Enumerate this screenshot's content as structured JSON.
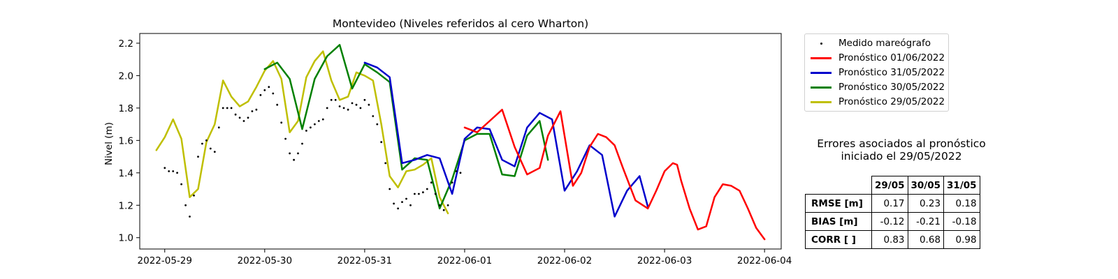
{
  "chart_data": {
    "type": "line",
    "title": "Montevideo (Niveles referidos al cero Wharton)",
    "xlabel": "",
    "ylabel": "Nivel (m)",
    "xlim": [
      "2022-05-28 18:00",
      "2022-06-04 04:00"
    ],
    "ylim": [
      0.93,
      2.26
    ],
    "yticks": [
      1.0,
      1.2,
      1.4,
      1.6,
      1.8,
      2.0,
      2.2
    ],
    "xticks": [
      "2022-05-29",
      "2022-05-30",
      "2022-05-31",
      "2022-06-01",
      "2022-06-02",
      "2022-06-03",
      "2022-06-04"
    ],
    "grid": false,
    "legend_position": "outside-right",
    "series": [
      {
        "name": "Medido mareógrafo",
        "style": "scatter",
        "color": "#000000",
        "x": [
          "2022-05-29 00:00",
          "2022-05-29 01:00",
          "2022-05-29 02:00",
          "2022-05-29 03:00",
          "2022-05-29 04:00",
          "2022-05-29 05:00",
          "2022-05-29 06:00",
          "2022-05-29 07:00",
          "2022-05-29 08:00",
          "2022-05-29 09:00",
          "2022-05-29 10:00",
          "2022-05-29 11:00",
          "2022-05-29 12:00",
          "2022-05-29 13:00",
          "2022-05-29 14:00",
          "2022-05-29 15:00",
          "2022-05-29 16:00",
          "2022-05-29 17:00",
          "2022-05-29 18:00",
          "2022-05-29 19:00",
          "2022-05-29 20:00",
          "2022-05-29 21:00",
          "2022-05-29 22:00",
          "2022-05-29 23:00",
          "2022-05-30 00:00",
          "2022-05-30 01:00",
          "2022-05-30 02:00",
          "2022-05-30 03:00",
          "2022-05-30 04:00",
          "2022-05-30 05:00",
          "2022-05-30 06:00",
          "2022-05-30 07:00",
          "2022-05-30 08:00",
          "2022-05-30 09:00",
          "2022-05-30 10:00",
          "2022-05-30 11:00",
          "2022-05-30 12:00",
          "2022-05-30 13:00",
          "2022-05-30 14:00",
          "2022-05-30 15:00",
          "2022-05-30 16:00",
          "2022-05-30 17:00",
          "2022-05-30 18:00",
          "2022-05-30 19:00",
          "2022-05-30 20:00",
          "2022-05-30 21:00",
          "2022-05-30 22:00",
          "2022-05-30 23:00",
          "2022-05-31 00:00",
          "2022-05-31 01:00",
          "2022-05-31 02:00",
          "2022-05-31 03:00",
          "2022-05-31 04:00",
          "2022-05-31 05:00",
          "2022-05-31 06:00",
          "2022-05-31 07:00",
          "2022-05-31 08:00",
          "2022-05-31 09:00",
          "2022-05-31 10:00",
          "2022-05-31 11:00",
          "2022-05-31 12:00",
          "2022-05-31 13:00",
          "2022-05-31 14:00",
          "2022-05-31 15:00",
          "2022-05-31 16:00",
          "2022-05-31 17:00",
          "2022-05-31 18:00",
          "2022-05-31 19:00",
          "2022-05-31 20:00",
          "2022-05-31 21:00",
          "2022-05-31 22:00",
          "2022-05-31 23:00"
        ],
        "values": [
          1.43,
          1.41,
          1.41,
          1.4,
          1.33,
          1.2,
          1.13,
          1.26,
          1.5,
          1.58,
          1.6,
          1.55,
          1.53,
          1.68,
          1.8,
          1.8,
          1.8,
          1.76,
          1.74,
          1.72,
          1.74,
          1.78,
          1.79,
          1.88,
          1.91,
          1.93,
          1.89,
          1.82,
          1.71,
          1.61,
          1.52,
          1.48,
          1.52,
          1.58,
          1.66,
          1.68,
          1.7,
          1.72,
          1.73,
          1.8,
          1.85,
          1.85,
          1.81,
          1.8,
          1.79,
          1.83,
          1.82,
          1.8,
          1.85,
          1.82,
          1.75,
          1.7,
          1.59,
          1.46,
          1.3,
          1.21,
          1.18,
          1.22,
          1.24,
          1.2,
          1.27,
          1.27,
          1.28,
          1.3,
          1.34,
          1.27,
          1.2,
          1.17,
          1.2,
          1.34,
          1.41,
          1.4
        ]
      },
      {
        "name": "Pronóstico 01/06/2022",
        "style": "line",
        "color": "#ff0000",
        "x": [
          "2022-06-01 00:00",
          "2022-06-01 03:00",
          "2022-06-01 06:00",
          "2022-06-01 09:00",
          "2022-06-01 12:00",
          "2022-06-01 15:00",
          "2022-06-01 18:00",
          "2022-06-01 20:00",
          "2022-06-01 23:00",
          "2022-06-02 02:00",
          "2022-06-02 04:00",
          "2022-06-02 06:00",
          "2022-06-02 08:00",
          "2022-06-02 10:00",
          "2022-06-02 12:00",
          "2022-06-02 14:00",
          "2022-06-02 17:00",
          "2022-06-02 20:00",
          "2022-06-02 22:00",
          "2022-06-03 00:00",
          "2022-06-03 02:00",
          "2022-06-03 03:00",
          "2022-06-03 04:00",
          "2022-06-03 06:00",
          "2022-06-03 08:00",
          "2022-06-03 10:00",
          "2022-06-03 12:00",
          "2022-06-03 14:00",
          "2022-06-03 16:00",
          "2022-06-03 18:00",
          "2022-06-03 20:00",
          "2022-06-03 22:00",
          "2022-06-04 00:00"
        ],
        "values": [
          1.68,
          1.65,
          1.72,
          1.79,
          1.56,
          1.39,
          1.43,
          1.63,
          1.78,
          1.32,
          1.4,
          1.56,
          1.64,
          1.62,
          1.57,
          1.43,
          1.23,
          1.18,
          1.29,
          1.41,
          1.46,
          1.45,
          1.35,
          1.18,
          1.05,
          1.07,
          1.25,
          1.33,
          1.32,
          1.29,
          1.18,
          1.06,
          0.99
        ]
      },
      {
        "name": "Pronóstico 31/05/2022",
        "style": "line",
        "color": "#0000cc",
        "x": [
          "2022-05-31 00:00",
          "2022-05-31 03:00",
          "2022-05-31 06:00",
          "2022-05-31 09:00",
          "2022-05-31 12:00",
          "2022-05-31 15:00",
          "2022-05-31 18:00",
          "2022-05-31 21:00",
          "2022-06-01 00:00",
          "2022-06-01 03:00",
          "2022-06-01 06:00",
          "2022-06-01 09:00",
          "2022-06-01 12:00",
          "2022-06-01 15:00",
          "2022-06-01 18:00",
          "2022-06-01 21:00",
          "2022-06-02 00:00",
          "2022-06-02 03:00",
          "2022-06-02 06:00",
          "2022-06-02 09:00",
          "2022-06-02 12:00",
          "2022-06-02 15:00",
          "2022-06-02 18:00",
          "2022-06-02 20:00"
        ],
        "values": [
          2.08,
          2.05,
          1.99,
          1.46,
          1.48,
          1.51,
          1.49,
          1.27,
          1.61,
          1.68,
          1.67,
          1.48,
          1.44,
          1.68,
          1.77,
          1.73,
          1.29,
          1.41,
          1.57,
          1.51,
          1.13,
          1.29,
          1.38,
          1.19
        ]
      },
      {
        "name": "Pronóstico 30/05/2022",
        "style": "line",
        "color": "#008000",
        "x": [
          "2022-05-30 00:00",
          "2022-05-30 03:00",
          "2022-05-30 06:00",
          "2022-05-30 09:00",
          "2022-05-30 12:00",
          "2022-05-30 15:00",
          "2022-05-30 18:00",
          "2022-05-30 21:00",
          "2022-05-31 00:00",
          "2022-05-31 03:00",
          "2022-05-31 06:00",
          "2022-05-31 09:00",
          "2022-05-31 12:00",
          "2022-05-31 15:00",
          "2022-05-31 18:00",
          "2022-05-31 21:00",
          "2022-06-01 00:00",
          "2022-06-01 03:00",
          "2022-06-01 06:00",
          "2022-06-01 09:00",
          "2022-06-01 12:00",
          "2022-06-01 15:00",
          "2022-06-01 18:00",
          "2022-06-01 20:00"
        ],
        "values": [
          2.04,
          2.08,
          1.98,
          1.67,
          1.98,
          2.12,
          2.19,
          1.92,
          2.07,
          2.02,
          1.96,
          1.42,
          1.49,
          1.48,
          1.18,
          1.36,
          1.6,
          1.64,
          1.64,
          1.39,
          1.38,
          1.63,
          1.72,
          1.48
        ]
      },
      {
        "name": "Pronóstico 29/05/2022",
        "style": "line",
        "color": "#bfbf00",
        "x": [
          "2022-05-28 22:00",
          "2022-05-29 00:00",
          "2022-05-29 02:00",
          "2022-05-29 04:00",
          "2022-05-29 06:00",
          "2022-05-29 08:00",
          "2022-05-29 10:00",
          "2022-05-29 12:00",
          "2022-05-29 14:00",
          "2022-05-29 16:00",
          "2022-05-29 18:00",
          "2022-05-29 20:00",
          "2022-05-29 22:00",
          "2022-05-30 00:00",
          "2022-05-30 02:00",
          "2022-05-30 04:00",
          "2022-05-30 06:00",
          "2022-05-30 08:00",
          "2022-05-30 10:00",
          "2022-05-30 12:00",
          "2022-05-30 14:00",
          "2022-05-30 16:00",
          "2022-05-30 18:00",
          "2022-05-30 20:00",
          "2022-05-30 22:00",
          "2022-05-31 00:00",
          "2022-05-31 02:00",
          "2022-05-31 04:00",
          "2022-05-31 06:00",
          "2022-05-31 08:00",
          "2022-05-31 10:00",
          "2022-05-31 12:00",
          "2022-05-31 14:00",
          "2022-05-31 16:00",
          "2022-05-31 18:00",
          "2022-05-31 20:00"
        ],
        "values": [
          1.54,
          1.62,
          1.73,
          1.61,
          1.25,
          1.3,
          1.59,
          1.7,
          1.97,
          1.87,
          1.81,
          1.84,
          1.93,
          2.03,
          2.09,
          1.98,
          1.65,
          1.72,
          1.99,
          2.09,
          2.15,
          1.97,
          1.85,
          1.87,
          2.02,
          2.0,
          1.97,
          1.7,
          1.38,
          1.31,
          1.41,
          1.42,
          1.45,
          1.49,
          1.25,
          1.15
        ]
      }
    ]
  },
  "legend": {
    "items": [
      {
        "label": "Medido mareógrafo",
        "marker": "dot",
        "color": "#000000"
      },
      {
        "label": "Pronóstico 01/06/2022",
        "marker": "line",
        "color": "#ff0000"
      },
      {
        "label": "Pronóstico 31/05/2022",
        "marker": "line",
        "color": "#0000cc"
      },
      {
        "label": "Pronóstico 30/05/2022",
        "marker": "line",
        "color": "#008000"
      },
      {
        "label": "Pronóstico 29/05/2022",
        "marker": "line",
        "color": "#bfbf00"
      }
    ]
  },
  "errors": {
    "title_line1": "Errores asociados al pronóstico",
    "title_line2": "iniciado el 29/05/2022",
    "columns": [
      "29/05",
      "30/05",
      "31/05"
    ],
    "rows": [
      {
        "label": "RMSE [m]",
        "values": [
          "0.17",
          "0.23",
          "0.18"
        ]
      },
      {
        "label": "BIAS [m]",
        "values": [
          "-0.12",
          "-0.21",
          "-0.18"
        ]
      },
      {
        "label": "CORR [ ]",
        "values": [
          "0.83",
          "0.68",
          "0.98"
        ]
      }
    ]
  }
}
